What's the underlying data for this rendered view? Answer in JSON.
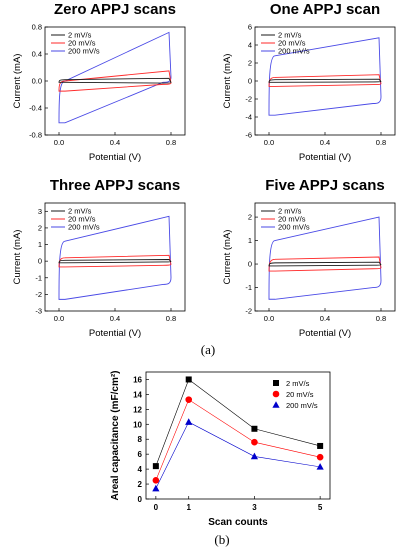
{
  "colors": {
    "s2": "#1a1a1a",
    "s20": "#ff2a2a",
    "s200": "#4a4ae6",
    "black": "#000000",
    "red": "#ff0000",
    "blue": "#0000cc"
  },
  "figure": {
    "caption_a": "(a)",
    "caption_b": "(b)"
  },
  "chart_data": [
    {
      "type": "line",
      "title": "Zero APPJ scans",
      "xlabel": "Potential (V)",
      "ylabel": "Current (mA)",
      "xlim": [
        -0.1,
        0.9
      ],
      "ylim": [
        -0.8,
        0.8
      ],
      "xticks": [
        0.0,
        0.4,
        0.8
      ],
      "xtick_labels": [
        "0.0",
        "0.4",
        "0.8"
      ],
      "yticks": [
        -0.8,
        -0.4,
        0.0,
        0.4,
        0.8
      ],
      "ytick_labels": [
        "-0.8",
        "-0.4",
        "0.0",
        "0.4",
        "0.8"
      ],
      "legend": "top-left",
      "series": [
        {
          "name": "2 mV/s",
          "color_key": "s2",
          "x": [
            0.0,
            0.8
          ],
          "top": [
            0.02,
            0.04
          ],
          "bottom": [
            -0.02,
            -0.03
          ]
        },
        {
          "name": "20 mV/s",
          "color_key": "s20",
          "x": [
            0.0,
            0.8
          ],
          "top": [
            0.0,
            0.15
          ],
          "bottom": [
            -0.15,
            -0.05
          ]
        },
        {
          "name": "200 mV/s",
          "color_key": "s200",
          "x": [
            0.0,
            0.8
          ],
          "top": [
            0.0,
            0.72
          ],
          "bottom": [
            -0.62,
            -0.02
          ]
        }
      ]
    },
    {
      "type": "line",
      "title": "One APPJ scan",
      "xlabel": "Potential (V)",
      "ylabel": "Current (mA)",
      "xlim": [
        -0.1,
        0.9
      ],
      "ylim": [
        -6,
        6
      ],
      "xticks": [
        0.0,
        0.4,
        0.8
      ],
      "xtick_labels": [
        "0.0",
        "0.4",
        "0.8"
      ],
      "yticks": [
        -6,
        -4,
        -2,
        0,
        2,
        4,
        6
      ],
      "ytick_labels": [
        "-6",
        "-4",
        "-2",
        "0",
        "2",
        "4",
        "6"
      ],
      "legend": "top-left",
      "series": [
        {
          "name": "2 mV/s",
          "color_key": "s2",
          "x": [
            0.0,
            0.8
          ],
          "top": [
            0.15,
            0.2
          ],
          "bottom": [
            -0.15,
            -0.1
          ]
        },
        {
          "name": "20 mV/s",
          "color_key": "s20",
          "x": [
            0.0,
            0.8
          ],
          "top": [
            0.4,
            0.7
          ],
          "bottom": [
            -0.6,
            -0.4
          ]
        },
        {
          "name": "200 mV/s",
          "color_key": "s200",
          "x": [
            0.0,
            0.8
          ],
          "top": [
            2.8,
            4.8
          ],
          "bottom": [
            -3.8,
            -2.5
          ]
        }
      ]
    },
    {
      "type": "line",
      "title": "Three APPJ scans",
      "xlabel": "Potential (V)",
      "ylabel": "Current (mA)",
      "xlim": [
        -0.1,
        0.9
      ],
      "ylim": [
        -3,
        3.5
      ],
      "xticks": [
        0.0,
        0.4,
        0.8
      ],
      "xtick_labels": [
        "0.0",
        "0.4",
        "0.8"
      ],
      "yticks": [
        -3,
        -2,
        -1,
        0,
        1,
        2,
        3
      ],
      "ytick_labels": [
        "-3",
        "-2",
        "-1",
        "0",
        "1",
        "2",
        "3"
      ],
      "legend": "top-left",
      "series": [
        {
          "name": "2 mV/s",
          "color_key": "s2",
          "x": [
            0.0,
            0.8
          ],
          "top": [
            0.05,
            0.1
          ],
          "bottom": [
            -0.1,
            -0.05
          ]
        },
        {
          "name": "20 mV/s",
          "color_key": "s20",
          "x": [
            0.0,
            0.8
          ],
          "top": [
            0.2,
            0.35
          ],
          "bottom": [
            -0.35,
            -0.25
          ]
        },
        {
          "name": "200 mV/s",
          "color_key": "s200",
          "x": [
            0.0,
            0.8
          ],
          "top": [
            1.2,
            2.7
          ],
          "bottom": [
            -2.3,
            -1.4
          ]
        }
      ]
    },
    {
      "type": "line",
      "title": "Five APPJ  scans",
      "xlabel": "Potential (V)",
      "ylabel": "Current (mA)",
      "xlim": [
        -0.1,
        0.9
      ],
      "ylim": [
        -2,
        2.6
      ],
      "xticks": [
        0.0,
        0.4,
        0.8
      ],
      "xtick_labels": [
        "0.0",
        "0.4",
        "0.8"
      ],
      "yticks": [
        -2,
        -1,
        0,
        1,
        2
      ],
      "ytick_labels": [
        "-2",
        "-1",
        "0",
        "1",
        "2"
      ],
      "legend": "top-left",
      "series": [
        {
          "name": "2 mV/s",
          "color_key": "s2",
          "x": [
            0.0,
            0.8
          ],
          "top": [
            0.05,
            0.08
          ],
          "bottom": [
            -0.08,
            -0.05
          ]
        },
        {
          "name": "20 mV/s",
          "color_key": "s20",
          "x": [
            0.0,
            0.8
          ],
          "top": [
            0.2,
            0.3
          ],
          "bottom": [
            -0.3,
            -0.2
          ]
        },
        {
          "name": "200 mV/s",
          "color_key": "s200",
          "x": [
            0.0,
            0.8
          ],
          "top": [
            1.0,
            2.0
          ],
          "bottom": [
            -1.5,
            -1.0
          ]
        }
      ]
    },
    {
      "type": "line",
      "title": "",
      "xlabel": "Scan counts",
      "ylabel": "Areal capacitance (mF/cm²)",
      "categories": [
        "0",
        "1",
        "3",
        "5"
      ],
      "x": [
        0,
        1,
        3,
        5
      ],
      "xlim": [
        -0.3,
        5.3
      ],
      "ylim": [
        0,
        17
      ],
      "yticks": [
        0,
        2,
        4,
        6,
        8,
        10,
        12,
        14,
        16
      ],
      "ytick_labels": [
        "0",
        "2",
        "4",
        "6",
        "8",
        "10",
        "12",
        "14",
        "16"
      ],
      "legend": "top-right",
      "series": [
        {
          "name": "2 mV/s",
          "marker": "square",
          "color_key": "black",
          "values": [
            4.4,
            16.0,
            9.4,
            7.1
          ]
        },
        {
          "name": "20 mV/s",
          "marker": "circle",
          "color_key": "red",
          "values": [
            2.5,
            13.3,
            7.6,
            5.6
          ]
        },
        {
          "name": "200 mV/s",
          "marker": "triangle",
          "color_key": "blue",
          "values": [
            1.4,
            10.3,
            5.7,
            4.3
          ]
        }
      ]
    }
  ]
}
